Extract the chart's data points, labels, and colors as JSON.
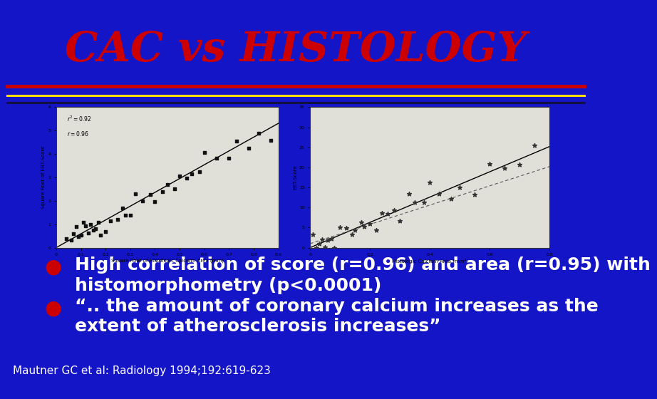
{
  "background_color": "#1515c8",
  "title": "CAC vs HISTOLOGY",
  "title_color": "#cc0000",
  "title_fontsize": 42,
  "separator_color_red": "#cc0000",
  "separator_color_yellow": "#ffdd00",
  "separator_color_dark": "#111133",
  "bullet_color": "#cc0000",
  "bullet1_line1": "High correlation of score (r=0.96) and area (r=0.95) with",
  "bullet1_line2": "histomorphometry (p<0.0001)",
  "bullet2_line1": "“.. the amount of coronary calcium increases as the",
  "bullet2_line2": "extent of atherosclerosis increases”",
  "citation": "Mautner GC et al: Radiology 1994;192:619-623",
  "text_color": "#ffffff",
  "text_fontsize": 18,
  "citation_fontsize": 11
}
